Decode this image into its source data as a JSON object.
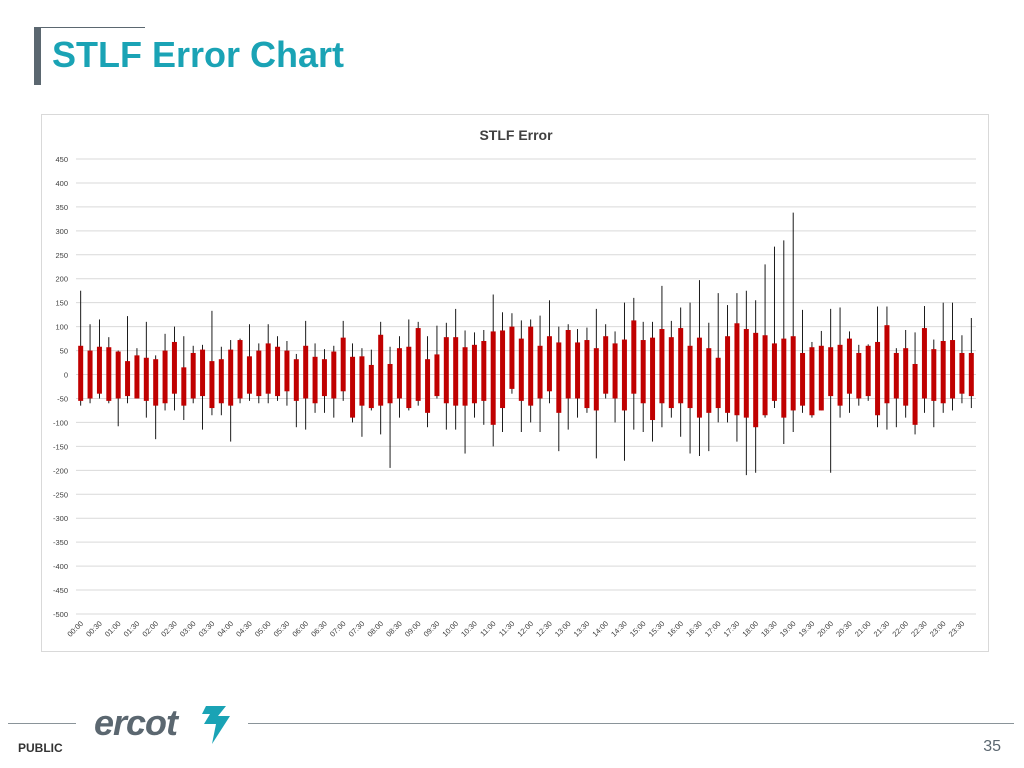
{
  "slide": {
    "title": "STLF Error Chart",
    "footer_label": "PUBLIC",
    "page_number": "35",
    "logo_text": "ercot"
  },
  "colors": {
    "title": "#1aa3b5",
    "bar": "#c00000",
    "whisker": "#000000",
    "grid": "#d9d9d9",
    "logo": "#5b6770",
    "logo_mark": "#1aa3b5"
  },
  "chart_data": {
    "type": "box",
    "title": "STLF Error",
    "ylim": [
      -500,
      450
    ],
    "yticks": [
      450,
      400,
      350,
      300,
      250,
      200,
      150,
      100,
      50,
      0,
      -50,
      -100,
      -150,
      -200,
      -250,
      -300,
      -350,
      -400,
      -450,
      -500
    ],
    "grid": true,
    "x_tick_labels": [
      "00:00",
      "00:30",
      "01:00",
      "01:30",
      "02:00",
      "02:30",
      "03:00",
      "03:30",
      "04:00",
      "04:30",
      "05:00",
      "05:30",
      "06:00",
      "06:30",
      "07:00",
      "07:30",
      "08:00",
      "08:30",
      "09:00",
      "09:30",
      "10:00",
      "10:30",
      "11:00",
      "11:30",
      "12:00",
      "12:30",
      "13:00",
      "13:30",
      "14:00",
      "14:30",
      "15:00",
      "15:30",
      "16:00",
      "16:30",
      "17:00",
      "17:30",
      "18:00",
      "18:30",
      "19:00",
      "19:30",
      "20:00",
      "20:30",
      "21:00",
      "21:30",
      "22:00",
      "22:30",
      "23:00",
      "23:30"
    ],
    "categories": [
      "00:00",
      "00:15",
      "00:30",
      "00:45",
      "01:00",
      "01:15",
      "01:30",
      "01:45",
      "02:00",
      "02:15",
      "02:30",
      "02:45",
      "03:00",
      "03:15",
      "03:30",
      "03:45",
      "04:00",
      "04:15",
      "04:30",
      "04:45",
      "05:00",
      "05:15",
      "05:30",
      "05:45",
      "06:00",
      "06:15",
      "06:30",
      "06:45",
      "07:00",
      "07:15",
      "07:30",
      "07:45",
      "08:00",
      "08:15",
      "08:30",
      "08:45",
      "09:00",
      "09:15",
      "09:30",
      "09:45",
      "10:00",
      "10:15",
      "10:30",
      "10:45",
      "11:00",
      "11:15",
      "11:30",
      "11:45",
      "12:00",
      "12:15",
      "12:30",
      "12:45",
      "13:00",
      "13:15",
      "13:30",
      "13:45",
      "14:00",
      "14:15",
      "14:30",
      "14:45",
      "15:00",
      "15:15",
      "15:30",
      "15:45",
      "16:00",
      "16:15",
      "16:30",
      "16:45",
      "17:00",
      "17:15",
      "17:30",
      "17:45",
      "18:00",
      "18:15",
      "18:30",
      "18:45",
      "19:00",
      "19:15",
      "19:30",
      "19:45",
      "20:00",
      "20:15",
      "20:30",
      "20:45",
      "21:00",
      "21:15",
      "21:30",
      "21:45",
      "22:00",
      "22:15",
      "22:30",
      "22:45",
      "23:00",
      "23:15",
      "23:30",
      "23:45"
    ],
    "box_low": [
      -55,
      -50,
      -40,
      -55,
      -50,
      -45,
      -50,
      -55,
      -65,
      -60,
      -40,
      -65,
      -50,
      -45,
      -70,
      -60,
      -65,
      -50,
      -40,
      -45,
      -40,
      -45,
      -35,
      -55,
      -50,
      -60,
      -45,
      -50,
      -35,
      -90,
      -65,
      -70,
      -65,
      -60,
      -50,
      -70,
      -55,
      -80,
      -45,
      -60,
      -65,
      -65,
      -60,
      -55,
      -105,
      -70,
      -30,
      -55,
      -65,
      -50,
      -35,
      -80,
      -50,
      -50,
      -70,
      -75,
      -40,
      -50,
      -75,
      -40,
      -60,
      -95,
      -60,
      -70,
      -60,
      -70,
      -90,
      -80,
      -70,
      -80,
      -85,
      -90,
      -110,
      -85,
      -55,
      -90,
      -75,
      -65,
      -85,
      -75,
      -45,
      -65,
      -40,
      -50,
      -45,
      -85,
      -60,
      -50,
      -65,
      -105,
      -50,
      -55,
      -60,
      -50,
      -40,
      -45
    ],
    "box_high": [
      60,
      50,
      58,
      57,
      48,
      28,
      40,
      35,
      32,
      50,
      68,
      15,
      45,
      52,
      28,
      32,
      52,
      72,
      38,
      50,
      65,
      58,
      50,
      32,
      60,
      37,
      32,
      48,
      77,
      37,
      38,
      20,
      83,
      22,
      55,
      58,
      97,
      32,
      42,
      78,
      78,
      57,
      62,
      70,
      90,
      92,
      100,
      75,
      100,
      60,
      80,
      67,
      93,
      67,
      72,
      55,
      80,
      65,
      73,
      113,
      72,
      77,
      95,
      78,
      97,
      60,
      77,
      55,
      35,
      80,
      107,
      95,
      87,
      82,
      65,
      75,
      80,
      45,
      57,
      60,
      57,
      62,
      75,
      45,
      60,
      68,
      103,
      45,
      55,
      22,
      97,
      53,
      70,
      72,
      45,
      45
    ],
    "whisker_low": [
      -65,
      -60,
      -50,
      -60,
      -108,
      -60,
      -50,
      -90,
      -135,
      -75,
      -75,
      -95,
      -60,
      -115,
      -85,
      -85,
      -140,
      -60,
      -55,
      -60,
      -60,
      -55,
      -65,
      -110,
      -115,
      -80,
      -80,
      -90,
      -55,
      -100,
      -130,
      -75,
      -125,
      -195,
      -90,
      -75,
      -65,
      -110,
      -50,
      -115,
      -115,
      -165,
      -90,
      -105,
      -150,
      -120,
      -40,
      -120,
      -100,
      -120,
      -60,
      -160,
      -115,
      -90,
      -80,
      -175,
      -50,
      -100,
      -180,
      -115,
      -120,
      -140,
      -110,
      -90,
      -130,
      -165,
      -170,
      -160,
      -100,
      -100,
      -140,
      -210,
      -205,
      -90,
      -70,
      -145,
      -120,
      -80,
      -90,
      -75,
      -205,
      -90,
      -80,
      -65,
      -55,
      -110,
      -115,
      -110,
      -90,
      -125,
      -80,
      -110,
      -80,
      -75,
      -60,
      -70
    ],
    "whisker_high": [
      175,
      105,
      115,
      78,
      50,
      122,
      55,
      110,
      40,
      85,
      100,
      80,
      60,
      62,
      133,
      58,
      72,
      75,
      105,
      65,
      105,
      80,
      70,
      43,
      112,
      65,
      53,
      60,
      112,
      65,
      55,
      52,
      110,
      58,
      80,
      115,
      110,
      80,
      102,
      108,
      137,
      92,
      88,
      93,
      167,
      130,
      128,
      113,
      115,
      123,
      155,
      100,
      105,
      95,
      98,
      137,
      105,
      90,
      150,
      160,
      110,
      110,
      185,
      112,
      140,
      150,
      197,
      108,
      170,
      145,
      170,
      175,
      155,
      230,
      267,
      280,
      338,
      135,
      68,
      91,
      137,
      140,
      90,
      62,
      63,
      142,
      142,
      55,
      93,
      88,
      143,
      73,
      150,
      150,
      82,
      118
    ]
  }
}
